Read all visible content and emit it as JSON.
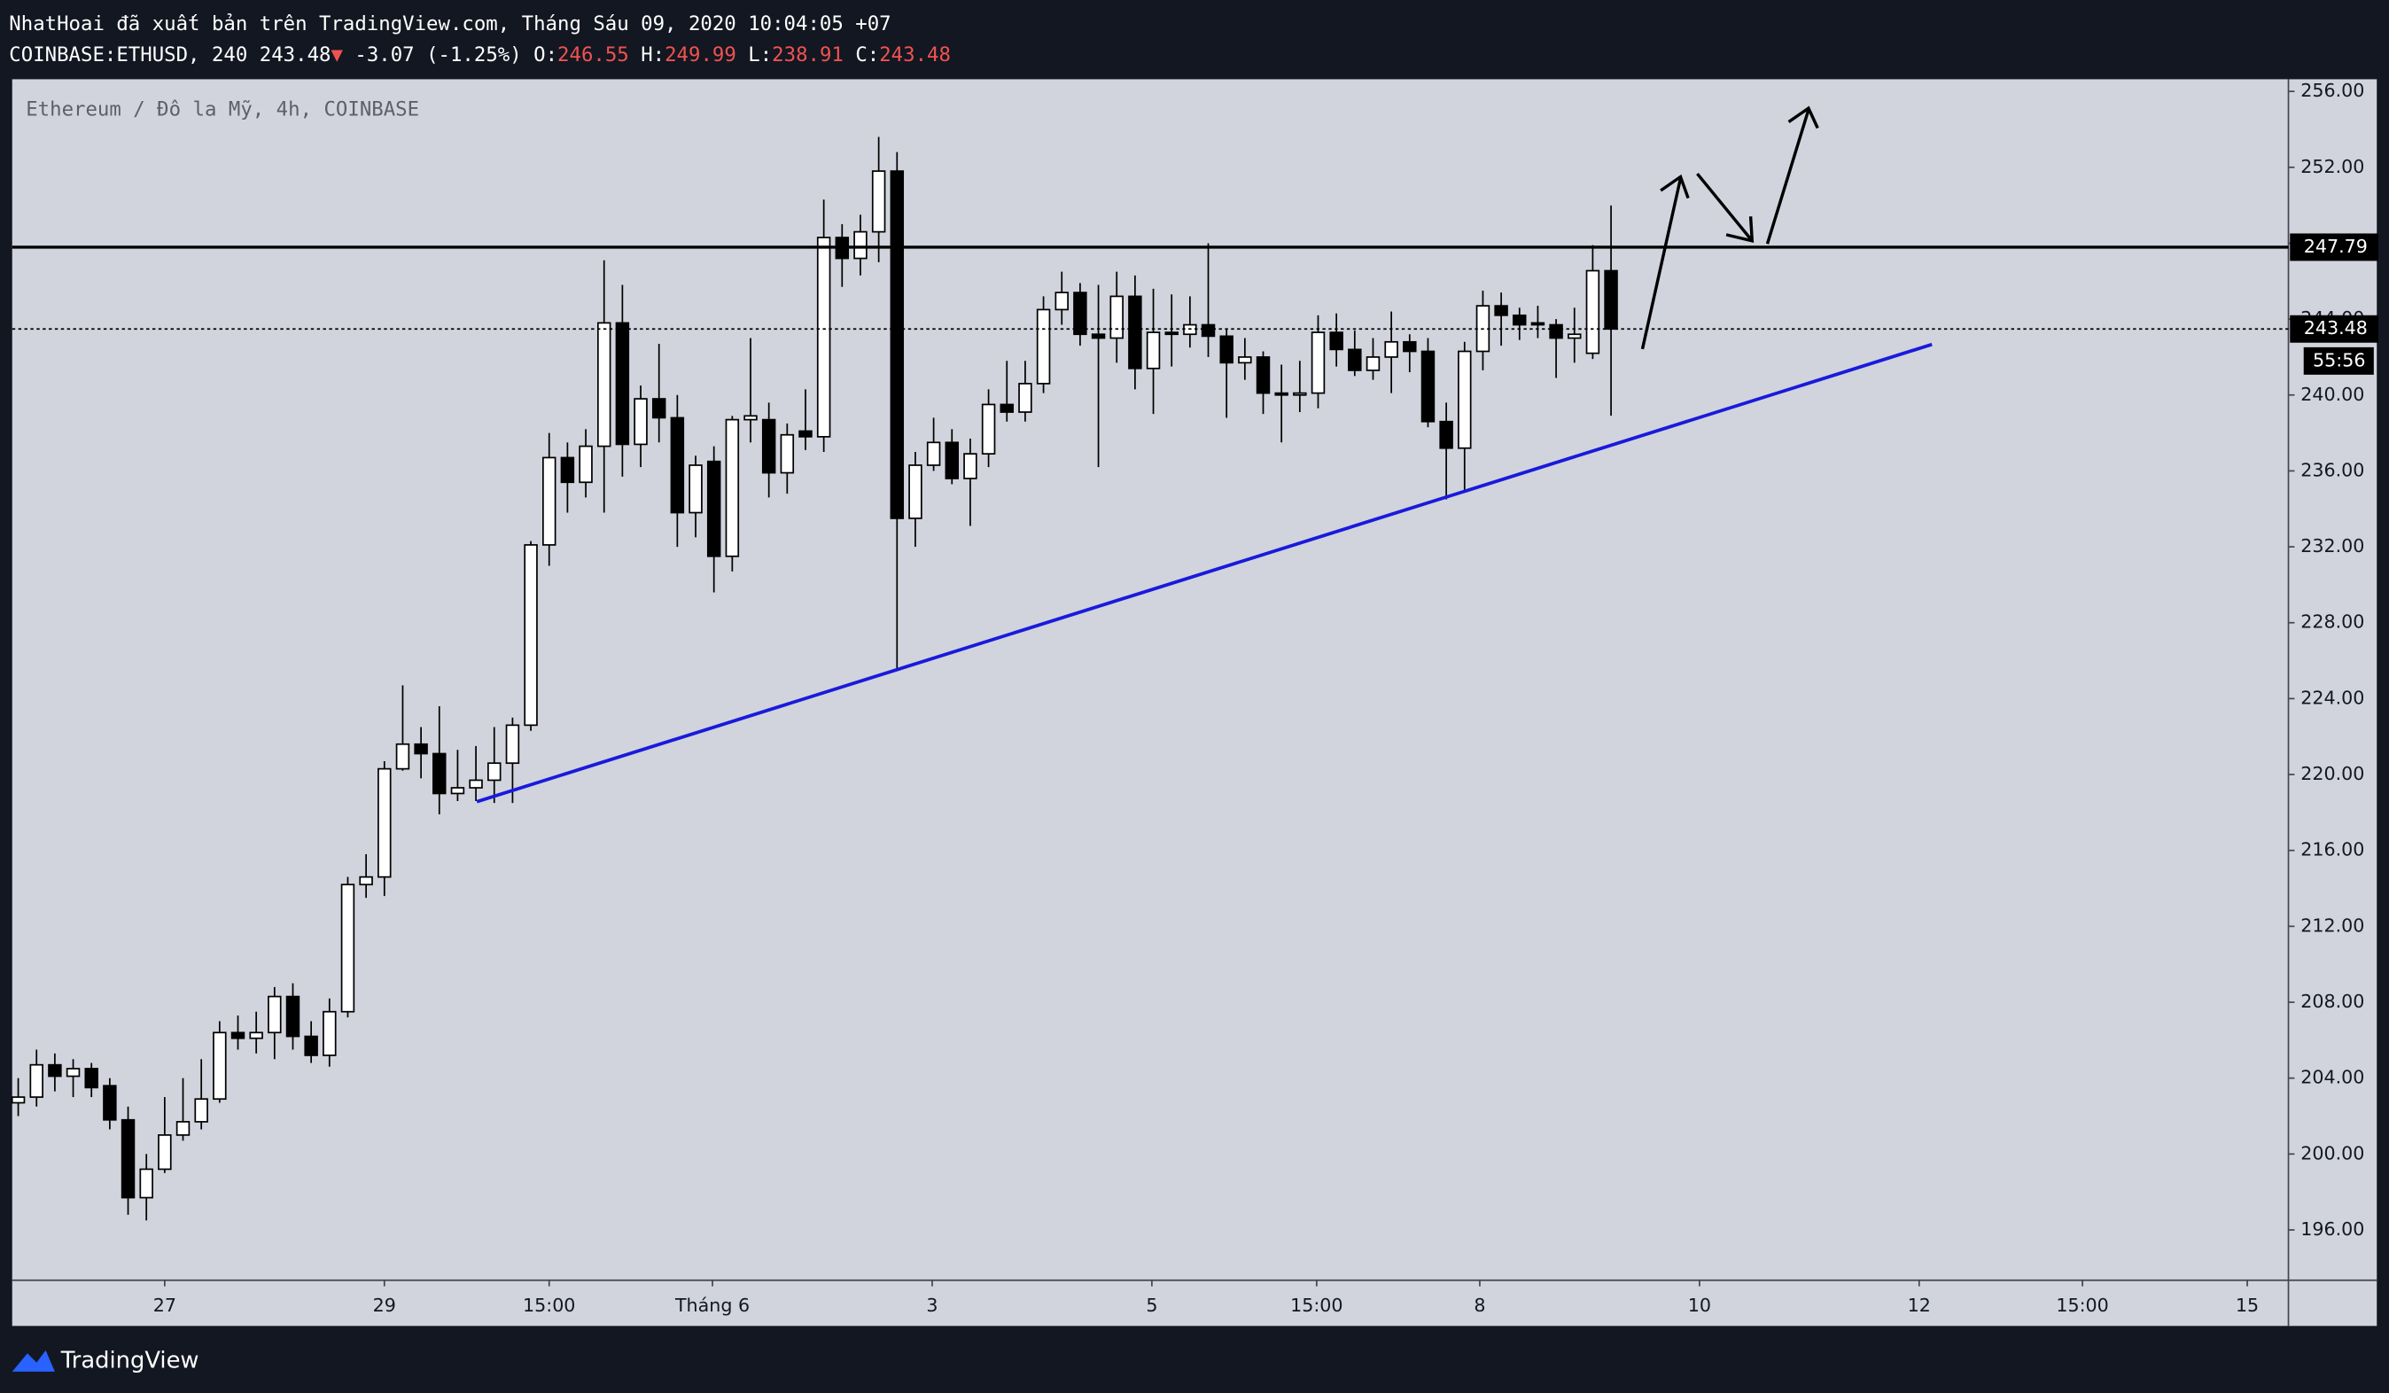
{
  "header": {
    "publisher": "NhatHoai đã xuất bản trên TradingView.com, Tháng Sáu 09, 2020 10:04:05 +07",
    "symbol": "COINBASE:ETHUSD, 240",
    "last": "243.48",
    "direction": "▼",
    "change": "-3.07 (-1.25%)",
    "open_label": "O:",
    "open": "246.55",
    "high_label": "H:",
    "high": "249.99",
    "low_label": "L:",
    "low": "238.91",
    "close_label": "C:",
    "close": "243.48"
  },
  "footer": {
    "brand": "TradingView"
  },
  "chart_data": {
    "type": "candlestick",
    "title": "Ethereum / Đô la Mỹ, 4h, COINBASE",
    "up_color": "#ffffff",
    "down_color": "#000000",
    "wick_color": "#000000",
    "open": [
      202.7,
      203.0,
      204.7,
      204.1,
      204.5,
      203.6,
      201.8,
      197.7,
      199.2,
      201.0,
      201.7,
      202.9,
      206.4,
      206.1,
      206.4,
      208.3,
      206.2,
      205.2,
      207.5,
      214.2,
      214.6,
      220.3,
      221.6,
      221.1,
      219.0,
      219.3,
      219.7,
      220.6,
      222.6,
      232.1,
      236.7,
      235.4,
      237.3,
      243.8,
      237.4,
      239.8,
      238.8,
      233.8,
      236.5,
      231.5,
      238.7,
      238.7,
      235.9,
      238.1,
      237.8,
      248.3,
      247.2,
      248.6,
      251.8,
      233.5,
      236.3,
      237.5,
      235.6,
      236.9,
      239.5,
      239.1,
      240.6,
      244.5,
      245.4,
      243.2,
      243.0,
      245.2,
      241.4,
      243.3,
      243.2,
      243.7,
      243.1,
      241.7,
      242.0,
      240.1,
      240.0,
      240.1,
      243.3,
      242.4,
      241.3,
      242.0,
      242.8,
      242.3,
      238.6,
      237.2,
      242.3,
      244.7,
      244.2,
      243.8,
      243.7,
      243.0,
      242.2,
      246.55
    ],
    "high": [
      204.0,
      205.5,
      205.3,
      205.0,
      204.8,
      204.0,
      202.5,
      200.0,
      203.0,
      204.0,
      205.0,
      207.0,
      207.3,
      207.5,
      208.8,
      209.0,
      207.0,
      208.2,
      214.6,
      215.8,
      220.7,
      224.7,
      222.5,
      223.6,
      221.3,
      221.5,
      222.5,
      223.0,
      232.3,
      238.0,
      237.5,
      238.2,
      247.1,
      245.8,
      240.5,
      242.7,
      240.0,
      236.8,
      237.3,
      238.9,
      243.0,
      239.6,
      238.5,
      240.3,
      250.3,
      249.0,
      249.5,
      253.6,
      252.8,
      237.0,
      238.8,
      238.2,
      237.7,
      240.3,
      241.8,
      241.8,
      245.2,
      246.5,
      245.9,
      245.8,
      246.5,
      246.3,
      245.6,
      245.3,
      245.2,
      248.0,
      243.5,
      243.0,
      242.3,
      241.6,
      241.8,
      244.2,
      244.3,
      243.4,
      243.0,
      244.4,
      243.2,
      243.0,
      239.6,
      242.8,
      245.5,
      245.4,
      244.6,
      244.7,
      244.0,
      244.6,
      247.9,
      249.99
    ],
    "low": [
      202.0,
      202.5,
      203.3,
      203.0,
      203.0,
      201.3,
      196.8,
      196.5,
      199.0,
      200.7,
      201.3,
      202.7,
      205.5,
      205.3,
      205.0,
      205.5,
      204.8,
      204.6,
      207.2,
      213.5,
      213.6,
      220.2,
      219.8,
      217.9,
      218.6,
      218.6,
      218.5,
      218.5,
      222.3,
      231.0,
      233.8,
      234.6,
      233.8,
      235.7,
      236.2,
      237.5,
      232.0,
      232.5,
      229.6,
      230.7,
      237.5,
      234.6,
      234.8,
      237.1,
      237.0,
      245.7,
      246.3,
      247.0,
      225.5,
      232.0,
      236.0,
      235.3,
      233.1,
      236.2,
      238.6,
      238.6,
      240.1,
      243.7,
      242.6,
      236.2,
      241.7,
      240.3,
      239.0,
      241.5,
      242.5,
      242.0,
      238.8,
      240.8,
      239.0,
      237.5,
      239.1,
      239.3,
      241.5,
      241.0,
      240.8,
      240.1,
      241.2,
      238.3,
      234.5,
      235.0,
      241.3,
      242.6,
      242.9,
      243.0,
      240.9,
      241.7,
      241.9,
      238.91
    ],
    "close": [
      203.0,
      204.7,
      204.1,
      204.5,
      203.5,
      201.8,
      197.7,
      199.2,
      201.0,
      201.7,
      202.9,
      206.4,
      206.1,
      206.4,
      208.3,
      206.2,
      205.2,
      207.5,
      214.2,
      214.6,
      220.3,
      221.6,
      221.1,
      219.0,
      219.3,
      219.7,
      220.6,
      222.6,
      232.1,
      236.7,
      235.4,
      237.3,
      243.8,
      237.4,
      239.8,
      238.8,
      233.8,
      236.3,
      231.5,
      238.7,
      238.9,
      235.9,
      237.9,
      237.8,
      248.3,
      247.2,
      248.6,
      251.8,
      233.5,
      236.3,
      237.5,
      235.6,
      236.9,
      239.5,
      239.1,
      240.6,
      244.5,
      245.4,
      243.2,
      243.0,
      245.2,
      241.4,
      243.3,
      243.2,
      243.7,
      243.1,
      241.7,
      242.0,
      240.1,
      240.0,
      240.1,
      243.3,
      242.4,
      241.3,
      242.0,
      242.8,
      242.3,
      238.6,
      237.2,
      242.3,
      244.7,
      244.2,
      243.7,
      243.7,
      243.0,
      243.2,
      246.55,
      243.48
    ],
    "xlim": [
      -0.33,
      124
    ],
    "xticks": [
      {
        "value": 8,
        "label": "27"
      },
      {
        "value": 20,
        "label": "29"
      },
      {
        "value": 29,
        "label": "15:00"
      },
      {
        "value": 37.92,
        "label": "Tháng 6"
      },
      {
        "value": 49.92,
        "label": "3"
      },
      {
        "value": 61.92,
        "label": "5"
      },
      {
        "value": 70.92,
        "label": "15:00"
      },
      {
        "value": 79.83,
        "label": "8"
      },
      {
        "value": 91.83,
        "label": "10"
      },
      {
        "value": 103.83,
        "label": "12"
      },
      {
        "value": 112.75,
        "label": "15:00"
      },
      {
        "value": 121.75,
        "label": "15"
      }
    ],
    "ylim": [
      193.51,
      256.64
    ],
    "yticks": [
      {
        "value": 196,
        "label": "196.00"
      },
      {
        "value": 200,
        "label": "200.00"
      },
      {
        "value": 204,
        "label": "204.00"
      },
      {
        "value": 208,
        "label": "208.00"
      },
      {
        "value": 212,
        "label": "212.00"
      },
      {
        "value": 216,
        "label": "216.00"
      },
      {
        "value": 220,
        "label": "220.00"
      },
      {
        "value": 224,
        "label": "224.00"
      },
      {
        "value": 228,
        "label": "228.00"
      },
      {
        "value": 232,
        "label": "232.00"
      },
      {
        "value": 236,
        "label": "236.00"
      },
      {
        "value": 240,
        "label": "240.00"
      },
      {
        "value": 244,
        "label": "244.00"
      },
      {
        "value": 248,
        "label": "248.00"
      },
      {
        "value": 252,
        "label": "252.00"
      },
      {
        "value": 256,
        "label": "256.00"
      }
    ],
    "price_lines": [
      {
        "value": 247.79,
        "style": "solid"
      },
      {
        "value": 243.48,
        "style": "dotted"
      }
    ],
    "countdown": "55:56"
  }
}
